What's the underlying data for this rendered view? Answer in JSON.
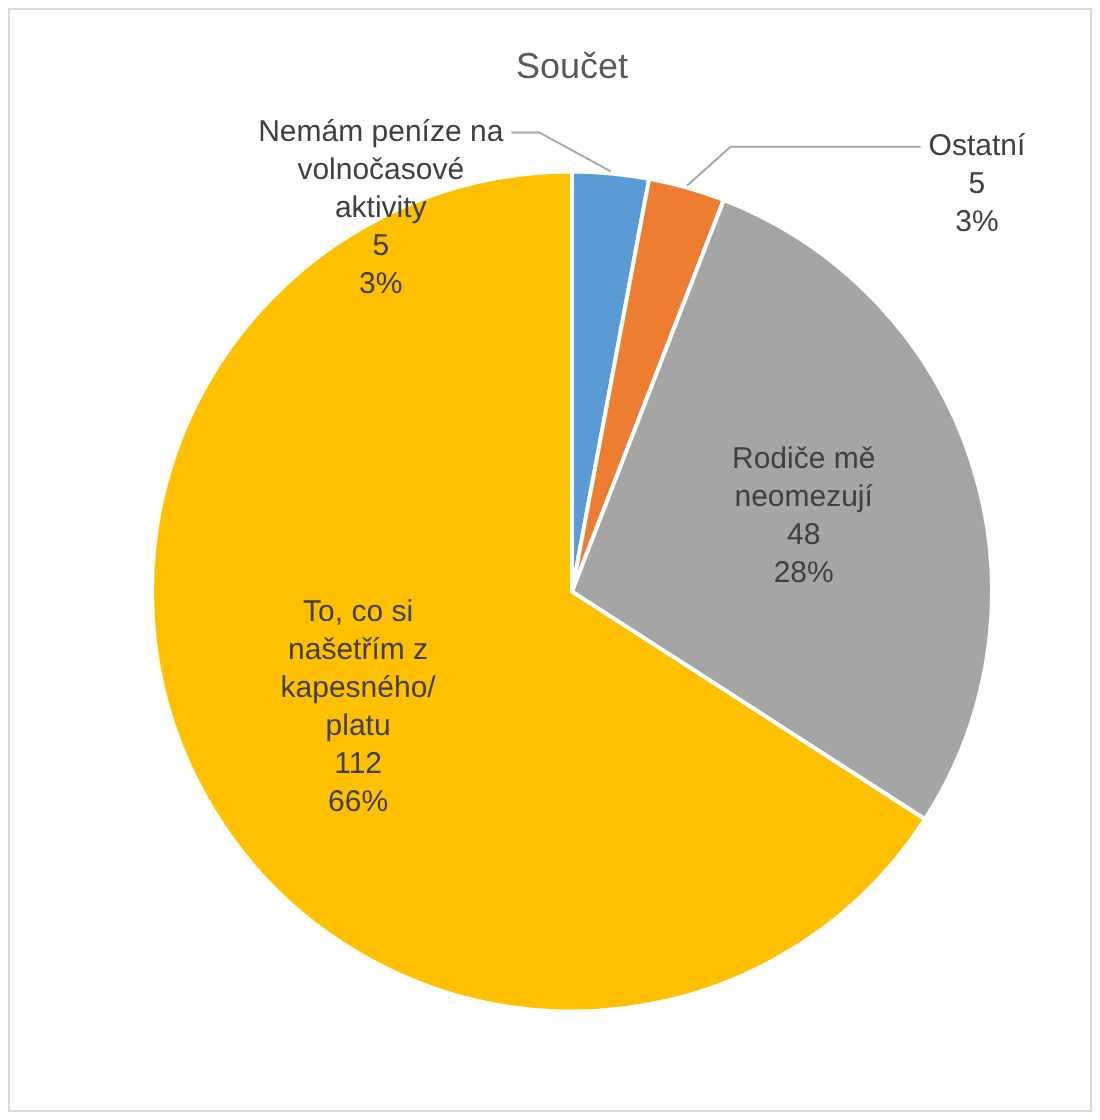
{
  "chart_data": {
    "type": "pie",
    "title": "Součet",
    "categories": [
      "Nemám peníze na volnočasové aktivity",
      "Ostatní",
      "Rodiče mě neomezují",
      "To, co si našetřím z kapesného/platu"
    ],
    "values": [
      5,
      5,
      48,
      112
    ],
    "colors": [
      "#5b9bd5",
      "#ed7d31",
      "#a5a5a5",
      "#ffc000"
    ],
    "value_labels": [
      "5\n3%",
      "5\n3%",
      "48\n28%",
      "112\n66%"
    ],
    "legend": false
  }
}
